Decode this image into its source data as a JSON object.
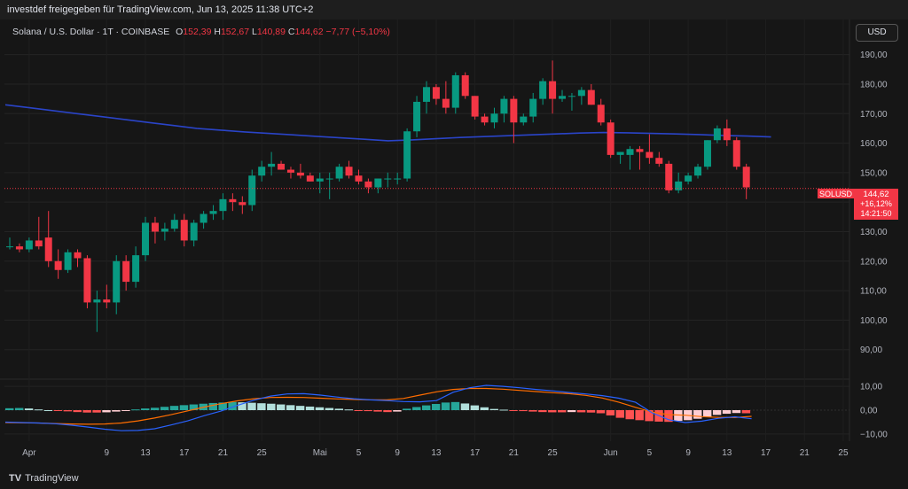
{
  "header": {
    "attribution": "investdef freigegeben für TradingView.com, Jun 13, 2025 11:38 UTC+2"
  },
  "legend": {
    "symbol": "Solana / U.S. Dollar · 1T · COINBASE",
    "o_label": "O",
    "o_value": "152,39",
    "h_label": "H",
    "h_value": "152,67",
    "l_label": "L",
    "l_value": "140,89",
    "c_label": "C",
    "c_value": "144,62",
    "change": "−7,77 (−5,10%)"
  },
  "currency_button": "USD",
  "price_tag": {
    "symbol": "SOLUSD",
    "price": "144,62",
    "change": "+16,12%",
    "countdown": "14:21:50"
  },
  "footer": {
    "brand": "TradingView",
    "logo": "TV"
  },
  "colors": {
    "up": "#089981",
    "down": "#f23645",
    "ma": "#2a44c8",
    "macd": "#2962ff",
    "signal": "#ff6d00"
  },
  "chart_data": [
    {
      "type": "candlestick",
      "title": "Solana / U.S. Dollar · 1T · COINBASE",
      "ylim": [
        80,
        195
      ],
      "y_ticks": [
        "90,00",
        "100,00",
        "110,00",
        "120,00",
        "130,00",
        "140,00",
        "150,00",
        "160,00",
        "170,00",
        "180,00",
        "190,00"
      ],
      "x_ticks": [
        "Apr",
        "9",
        "13",
        "17",
        "21",
        "25",
        "Mai",
        "5",
        "9",
        "13",
        "17",
        "21",
        "25",
        "Jun",
        "5",
        "9",
        "13",
        "17",
        "21",
        "25"
      ],
      "grid": true,
      "candles": [
        {
          "o": 125,
          "h": 128,
          "l": 124,
          "c": 125
        },
        {
          "o": 125,
          "h": 126,
          "l": 123,
          "c": 124
        },
        {
          "o": 124,
          "h": 128,
          "l": 123,
          "c": 127
        },
        {
          "o": 127,
          "h": 135,
          "l": 124,
          "c": 125
        },
        {
          "o": 128,
          "h": 137,
          "l": 118,
          "c": 120
        },
        {
          "o": 120,
          "h": 124,
          "l": 114,
          "c": 117
        },
        {
          "o": 117,
          "h": 124,
          "l": 116,
          "c": 123
        },
        {
          "o": 123,
          "h": 124,
          "l": 118,
          "c": 121
        },
        {
          "o": 121,
          "h": 122,
          "l": 104,
          "c": 106
        },
        {
          "o": 106,
          "h": 110,
          "l": 96,
          "c": 107
        },
        {
          "o": 107,
          "h": 112,
          "l": 104,
          "c": 106
        },
        {
          "o": 106,
          "h": 122,
          "l": 102,
          "c": 120
        },
        {
          "o": 120,
          "h": 122,
          "l": 110,
          "c": 113
        },
        {
          "o": 113,
          "h": 125,
          "l": 111,
          "c": 122
        },
        {
          "o": 122,
          "h": 135,
          "l": 120,
          "c": 133
        },
        {
          "o": 133,
          "h": 135,
          "l": 126,
          "c": 130
        },
        {
          "o": 130,
          "h": 133,
          "l": 127,
          "c": 131
        },
        {
          "o": 131,
          "h": 136,
          "l": 130,
          "c": 134
        },
        {
          "o": 134,
          "h": 136,
          "l": 125,
          "c": 127
        },
        {
          "o": 127,
          "h": 134,
          "l": 125,
          "c": 133
        },
        {
          "o": 133,
          "h": 137,
          "l": 131,
          "c": 136
        },
        {
          "o": 136,
          "h": 139,
          "l": 134,
          "c": 137
        },
        {
          "o": 137,
          "h": 143,
          "l": 134,
          "c": 141
        },
        {
          "o": 141,
          "h": 143,
          "l": 137,
          "c": 140
        },
        {
          "o": 140,
          "h": 142,
          "l": 136,
          "c": 139
        },
        {
          "o": 139,
          "h": 151,
          "l": 137,
          "c": 149
        },
        {
          "o": 149,
          "h": 154,
          "l": 147,
          "c": 152
        },
        {
          "o": 152,
          "h": 157,
          "l": 149,
          "c": 153
        },
        {
          "o": 153,
          "h": 154,
          "l": 151,
          "c": 151
        },
        {
          "o": 151,
          "h": 152,
          "l": 148,
          "c": 150
        },
        {
          "o": 150,
          "h": 153,
          "l": 148,
          "c": 149
        },
        {
          "o": 149,
          "h": 150,
          "l": 147,
          "c": 147
        },
        {
          "o": 147,
          "h": 150,
          "l": 143,
          "c": 148
        },
        {
          "o": 148,
          "h": 150,
          "l": 141,
          "c": 148
        },
        {
          "o": 148,
          "h": 153,
          "l": 147,
          "c": 152
        },
        {
          "o": 152,
          "h": 154,
          "l": 148,
          "c": 149
        },
        {
          "o": 149,
          "h": 151,
          "l": 146,
          "c": 147
        },
        {
          "o": 147,
          "h": 148,
          "l": 143,
          "c": 145
        },
        {
          "o": 145,
          "h": 148,
          "l": 143,
          "c": 148
        },
        {
          "o": 148,
          "h": 150,
          "l": 145,
          "c": 148
        },
        {
          "o": 148,
          "h": 150,
          "l": 146,
          "c": 148
        },
        {
          "o": 148,
          "h": 165,
          "l": 147,
          "c": 164
        },
        {
          "o": 164,
          "h": 176,
          "l": 162,
          "c": 174
        },
        {
          "o": 174,
          "h": 181,
          "l": 170,
          "c": 179
        },
        {
          "o": 179,
          "h": 180,
          "l": 173,
          "c": 175
        },
        {
          "o": 175,
          "h": 181,
          "l": 170,
          "c": 172
        },
        {
          "o": 172,
          "h": 184,
          "l": 170,
          "c": 183
        },
        {
          "o": 183,
          "h": 184,
          "l": 175,
          "c": 176
        },
        {
          "o": 176,
          "h": 176,
          "l": 168,
          "c": 169
        },
        {
          "o": 169,
          "h": 170,
          "l": 166,
          "c": 167
        },
        {
          "o": 167,
          "h": 172,
          "l": 165,
          "c": 170
        },
        {
          "o": 170,
          "h": 176,
          "l": 167,
          "c": 175
        },
        {
          "o": 175,
          "h": 176,
          "l": 160,
          "c": 167
        },
        {
          "o": 167,
          "h": 170,
          "l": 166,
          "c": 169
        },
        {
          "o": 169,
          "h": 177,
          "l": 167,
          "c": 175
        },
        {
          "o": 175,
          "h": 182,
          "l": 173,
          "c": 181
        },
        {
          "o": 181,
          "h": 188,
          "l": 170,
          "c": 175
        },
        {
          "o": 175,
          "h": 178,
          "l": 174,
          "c": 176
        },
        {
          "o": 176,
          "h": 177,
          "l": 171,
          "c": 176
        },
        {
          "o": 176,
          "h": 179,
          "l": 173,
          "c": 178
        },
        {
          "o": 178,
          "h": 180,
          "l": 173,
          "c": 173
        },
        {
          "o": 173,
          "h": 175,
          "l": 166,
          "c": 167
        },
        {
          "o": 167,
          "h": 168,
          "l": 155,
          "c": 156
        },
        {
          "o": 156,
          "h": 157,
          "l": 153,
          "c": 157
        },
        {
          "o": 156,
          "h": 159,
          "l": 151,
          "c": 158
        },
        {
          "o": 158,
          "h": 159,
          "l": 151,
          "c": 157
        },
        {
          "o": 157,
          "h": 163,
          "l": 153,
          "c": 155
        },
        {
          "o": 155,
          "h": 157,
          "l": 152,
          "c": 153
        },
        {
          "o": 153,
          "h": 154,
          "l": 143,
          "c": 144
        },
        {
          "o": 144,
          "h": 150,
          "l": 143,
          "c": 147
        },
        {
          "o": 147,
          "h": 150,
          "l": 146,
          "c": 149
        },
        {
          "o": 149,
          "h": 153,
          "l": 148,
          "c": 152
        },
        {
          "o": 152,
          "h": 161,
          "l": 151,
          "c": 161
        },
        {
          "o": 161,
          "h": 166,
          "l": 160,
          "c": 165
        },
        {
          "o": 165,
          "h": 168,
          "l": 159,
          "c": 161
        },
        {
          "o": 161,
          "h": 162,
          "l": 151,
          "c": 152
        },
        {
          "o": 152,
          "h": 153,
          "l": 141,
          "c": 145
        }
      ],
      "moving_average": [
        173,
        172,
        171,
        170,
        169,
        168,
        167,
        166,
        165,
        164.4,
        163.8,
        163.3,
        162.8,
        162.3,
        161.8,
        161.3,
        160.8,
        161.1,
        161.5,
        161.9,
        162.2,
        162.5,
        162.8,
        163.1,
        163.4,
        163.6,
        163.5,
        163.3,
        163.1,
        162.9,
        162.6,
        162.4,
        162.1
      ],
      "last_price": 144.62
    },
    {
      "type": "macd",
      "ylim": [
        -13,
        13
      ],
      "y_ticks": [
        "10,00",
        "0,00",
        "−10,00"
      ],
      "histogram": [
        0.8,
        0.9,
        0.7,
        0.3,
        0,
        -0.3,
        -0.5,
        -0.8,
        -1,
        -1,
        -0.9,
        -0.6,
        -0.2,
        0.3,
        0.7,
        1,
        1.4,
        1.8,
        2.1,
        2.4,
        2.7,
        3,
        3.2,
        3.4,
        3.3,
        3.1,
        2.9,
        2.7,
        2.4,
        2.1,
        1.8,
        1.5,
        1.2,
        0.9,
        0.6,
        0.3,
        -0.1,
        -0.4,
        -0.6,
        -0.8,
        -0.6,
        0.6,
        1.3,
        2,
        2.6,
        3.2,
        3.4,
        2.8,
        2,
        1.2,
        0.5,
        0.2,
        -0.2,
        -0.4,
        -0.6,
        -0.8,
        -0.9,
        -0.9,
        -0.8,
        -0.9,
        -1,
        -1.3,
        -2.2,
        -3.2,
        -3.8,
        -4.2,
        -4.6,
        -4.8,
        -4.9,
        -4.5,
        -4.2,
        -3.6,
        -2.8,
        -2,
        -1.5,
        -1.2,
        -1.3
      ],
      "macd_line": [
        -5,
        -5.2,
        -5.4,
        -5.7,
        -6.3,
        -7.1,
        -8,
        -8.6,
        -8.5,
        -7.8,
        -6.2,
        -4.5,
        -2.3,
        -0.4,
        2,
        4.2,
        5.9,
        6.8,
        6.9,
        6.3,
        5.5,
        4.8,
        4.3,
        4,
        3.6,
        3.5,
        4,
        7.5,
        9.4,
        10.4,
        10,
        9.4,
        8.7,
        8.1,
        7.4,
        6.8,
        6.1,
        5,
        3.3,
        -1.1,
        -4,
        -5.2,
        -4.6,
        -3.4,
        -2.8,
        -3.6
      ],
      "signal_line": [
        -5.2,
        -5.3,
        -5.4,
        -5.6,
        -5.8,
        -5.9,
        -5.8,
        -5.4,
        -4.5,
        -3.3,
        -1.9,
        -0.3,
        1.3,
        2.7,
        3.9,
        4.8,
        5.3,
        5.4,
        5.3,
        5,
        4.7,
        4.5,
        4.3,
        4.3,
        4.9,
        6.3,
        7.7,
        8.7,
        9.1,
        9.1,
        8.8,
        8.3,
        7.8,
        7.3,
        6.9,
        6.2,
        5.1,
        3.3,
        1.2,
        -0.8,
        -1.9,
        -2.1,
        -2.7,
        -3,
        -3.1,
        -2.6
      ]
    }
  ]
}
